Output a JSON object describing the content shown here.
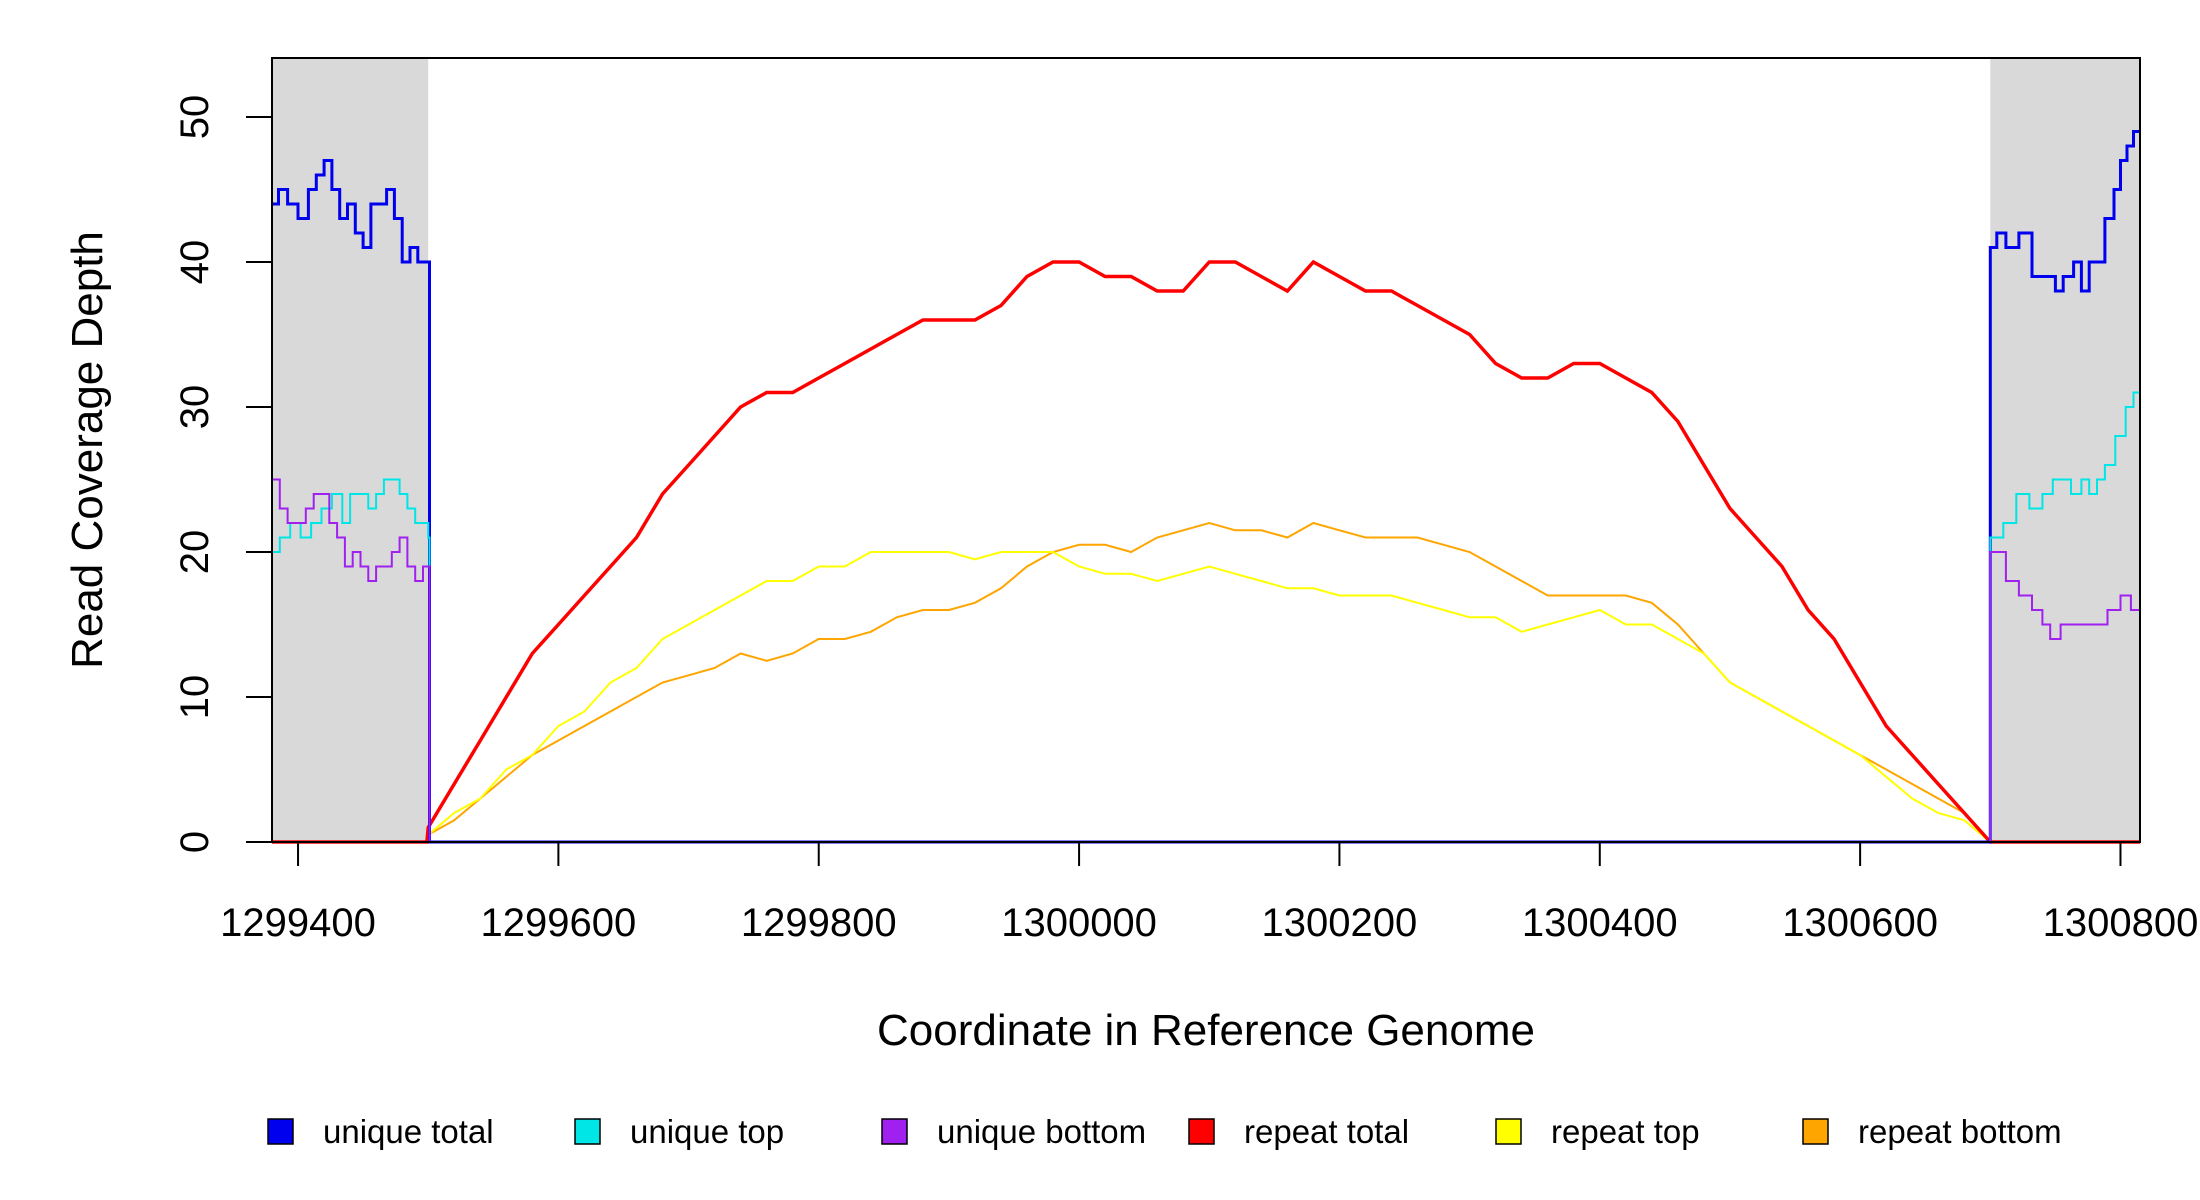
{
  "chart_data": {
    "type": "line",
    "title": "",
    "xlabel": "Coordinate in Reference Genome",
    "ylabel": "Read Coverage Depth",
    "xlim": [
      1299380,
      1300815
    ],
    "ylim": [
      0,
      54
    ],
    "x_ticks": [
      {
        "value": 1299400,
        "label": "1299400"
      },
      {
        "value": 1299600,
        "label": "1299600"
      },
      {
        "value": 1299800,
        "label": "1299800"
      },
      {
        "value": 1300000,
        "label": "1300000"
      },
      {
        "value": 1300200,
        "label": "1300200"
      },
      {
        "value": 1300400,
        "label": "1300400"
      },
      {
        "value": 1300600,
        "label": "1300600"
      },
      {
        "value": 1300800,
        "label": "1300800"
      }
    ],
    "y_ticks": [
      {
        "value": 0,
        "label": "0"
      },
      {
        "value": 10,
        "label": "10"
      },
      {
        "value": 20,
        "label": "20"
      },
      {
        "value": 30,
        "label": "30"
      },
      {
        "value": 40,
        "label": "40"
      },
      {
        "value": 50,
        "label": "50"
      }
    ],
    "shaded_regions": [
      {
        "from": 1299380,
        "to": 1299500,
        "color": "#d9d9d9"
      },
      {
        "from": 1300700,
        "to": 1300815,
        "color": "#d9d9d9"
      }
    ],
    "grid": false,
    "legend_position": "bottom",
    "series": [
      {
        "name": "unique total",
        "color": "#0000ee",
        "step": true,
        "x": [
          1299380,
          1299385,
          1299392,
          1299400,
          1299408,
          1299414,
          1299420,
          1299426,
          1299432,
          1299438,
          1299444,
          1299450,
          1299456,
          1299462,
          1299468,
          1299474,
          1299480,
          1299486,
          1299492,
          1299500,
          1299501,
          1300699,
          1300700,
          1300705,
          1300712,
          1300722,
          1300732,
          1300742,
          1300750,
          1300756,
          1300764,
          1300770,
          1300776,
          1300780,
          1300788,
          1300795,
          1300800,
          1300805,
          1300810,
          1300815
        ],
        "y": [
          44,
          45,
          44,
          43,
          45,
          46,
          47,
          45,
          43,
          44,
          42,
          41,
          44,
          44,
          45,
          43,
          40,
          41,
          40,
          40,
          0,
          0,
          41,
          42,
          41,
          42,
          39,
          39,
          38,
          39,
          40,
          38,
          40,
          40,
          43,
          45,
          47,
          48,
          49,
          49
        ]
      },
      {
        "name": "unique top",
        "color": "#00e5e5",
        "step": true,
        "x": [
          1299380,
          1299386,
          1299394,
          1299402,
          1299410,
          1299418,
          1299426,
          1299434,
          1299440,
          1299448,
          1299454,
          1299460,
          1299466,
          1299472,
          1299478,
          1299484,
          1299490,
          1299496,
          1299500,
          1299501,
          1300699,
          1300700,
          1300710,
          1300720,
          1300730,
          1300740,
          1300748,
          1300756,
          1300762,
          1300770,
          1300776,
          1300782,
          1300788,
          1300796,
          1300804,
          1300810,
          1300815
        ],
        "y": [
          20,
          21,
          22,
          21,
          22,
          23,
          24,
          22,
          24,
          24,
          23,
          24,
          25,
          25,
          24,
          23,
          22,
          22,
          21,
          0,
          0,
          21,
          22,
          24,
          23,
          24,
          25,
          25,
          24,
          25,
          24,
          25,
          26,
          28,
          30,
          31,
          32
        ]
      },
      {
        "name": "unique bottom",
        "color": "#a020f0",
        "step": true,
        "x": [
          1299380,
          1299386,
          1299392,
          1299400,
          1299406,
          1299412,
          1299418,
          1299424,
          1299430,
          1299436,
          1299442,
          1299448,
          1299454,
          1299460,
          1299466,
          1299472,
          1299478,
          1299484,
          1299490,
          1299496,
          1299500,
          1299501,
          1300699,
          1300700,
          1300712,
          1300722,
          1300732,
          1300740,
          1300746,
          1300754,
          1300762,
          1300770,
          1300778,
          1300790,
          1300800,
          1300808,
          1300815
        ],
        "y": [
          25,
          23,
          22,
          22,
          23,
          24,
          24,
          22,
          21,
          19,
          20,
          19,
          18,
          19,
          19,
          20,
          21,
          19,
          18,
          19,
          19,
          0,
          0,
          20,
          18,
          17,
          16,
          15,
          14,
          15,
          15,
          15,
          15,
          16,
          17,
          16,
          17
        ]
      },
      {
        "name": "repeat total",
        "color": "#ff0000",
        "step": false,
        "x": [
          1299380,
          1299499,
          1299500,
          1299520,
          1299540,
          1299560,
          1299580,
          1299600,
          1299620,
          1299640,
          1299660,
          1299680,
          1299700,
          1299720,
          1299740,
          1299760,
          1299780,
          1299800,
          1299820,
          1299840,
          1299860,
          1299880,
          1299900,
          1299920,
          1299940,
          1299960,
          1299980,
          1300000,
          1300020,
          1300040,
          1300060,
          1300080,
          1300100,
          1300120,
          1300140,
          1300160,
          1300180,
          1300200,
          1300220,
          1300240,
          1300260,
          1300280,
          1300300,
          1300320,
          1300340,
          1300360,
          1300380,
          1300400,
          1300420,
          1300440,
          1300460,
          1300480,
          1300500,
          1300520,
          1300540,
          1300560,
          1300580,
          1300600,
          1300620,
          1300640,
          1300660,
          1300680,
          1300700,
          1300701,
          1300815
        ],
        "y": [
          0,
          0,
          1,
          4,
          7,
          10,
          13,
          15,
          17,
          19,
          21,
          24,
          26,
          28,
          30,
          31,
          31,
          32,
          33,
          34,
          35,
          36,
          36,
          36,
          37,
          39,
          40,
          40,
          39,
          39,
          38,
          38,
          40,
          40,
          39,
          38,
          40,
          39,
          38,
          38,
          37,
          36,
          35,
          33,
          32,
          32,
          33,
          33,
          32,
          31,
          29,
          26,
          23,
          21,
          19,
          16,
          14,
          11,
          8,
          6,
          4,
          2,
          0,
          0,
          0
        ]
      },
      {
        "name": "repeat top",
        "color": "#ffff00",
        "step": false,
        "x": [
          1299380,
          1299499,
          1299500,
          1299520,
          1299540,
          1299560,
          1299580,
          1299600,
          1299620,
          1299640,
          1299660,
          1299680,
          1299700,
          1299720,
          1299740,
          1299760,
          1299780,
          1299800,
          1299820,
          1299840,
          1299860,
          1299880,
          1299900,
          1299920,
          1299940,
          1299960,
          1299980,
          1300000,
          1300020,
          1300040,
          1300060,
          1300080,
          1300100,
          1300120,
          1300140,
          1300160,
          1300180,
          1300200,
          1300220,
          1300240,
          1300260,
          1300280,
          1300300,
          1300320,
          1300340,
          1300360,
          1300380,
          1300400,
          1300420,
          1300440,
          1300460,
          1300480,
          1300500,
          1300520,
          1300540,
          1300560,
          1300580,
          1300600,
          1300620,
          1300640,
          1300660,
          1300680,
          1300700,
          1300701,
          1300815
        ],
        "y": [
          0,
          0,
          0.5,
          2,
          3,
          5,
          6,
          8,
          9,
          11,
          12,
          14,
          15,
          16,
          17,
          18,
          18,
          19,
          19,
          20,
          20,
          20,
          20,
          19.5,
          20,
          20,
          20,
          19,
          18.5,
          18.5,
          18,
          18.5,
          19,
          18.5,
          18,
          17.5,
          17.5,
          17,
          17,
          17,
          16.5,
          16,
          15.5,
          15.5,
          14.5,
          15,
          15.5,
          16,
          15,
          15,
          14,
          13,
          11,
          10,
          9,
          8,
          7,
          6,
          4.5,
          3,
          2,
          1.5,
          0,
          0,
          0
        ]
      },
      {
        "name": "repeat bottom",
        "color": "#ffa500",
        "step": false,
        "x": [
          1299380,
          1299499,
          1299500,
          1299520,
          1299540,
          1299560,
          1299580,
          1299600,
          1299620,
          1299640,
          1299660,
          1299680,
          1299700,
          1299720,
          1299740,
          1299760,
          1299780,
          1299800,
          1299820,
          1299840,
          1299860,
          1299880,
          1299900,
          1299920,
          1299940,
          1299960,
          1299980,
          1300000,
          1300020,
          1300040,
          1300060,
          1300080,
          1300100,
          1300120,
          1300140,
          1300160,
          1300180,
          1300200,
          1300220,
          1300240,
          1300260,
          1300280,
          1300300,
          1300320,
          1300340,
          1300360,
          1300380,
          1300400,
          1300420,
          1300440,
          1300460,
          1300480,
          1300500,
          1300520,
          1300540,
          1300560,
          1300580,
          1300600,
          1300620,
          1300640,
          1300660,
          1300680,
          1300700,
          1300701,
          1300815
        ],
        "y": [
          0,
          0,
          0.5,
          1.5,
          3,
          4.5,
          6,
          7,
          8,
          9,
          10,
          11,
          11.5,
          12,
          13,
          12.5,
          13,
          14,
          14,
          14.5,
          15.5,
          16,
          16,
          16.5,
          17.5,
          19,
          20,
          20.5,
          20.5,
          20,
          21,
          21.5,
          22,
          21.5,
          21.5,
          21,
          22,
          21.5,
          21,
          21,
          21,
          20.5,
          20,
          19,
          18,
          17,
          17,
          17,
          17,
          16.5,
          15,
          13,
          11,
          10,
          9,
          8,
          7,
          6,
          5,
          4,
          3,
          2,
          0,
          0,
          0
        ]
      }
    ]
  }
}
